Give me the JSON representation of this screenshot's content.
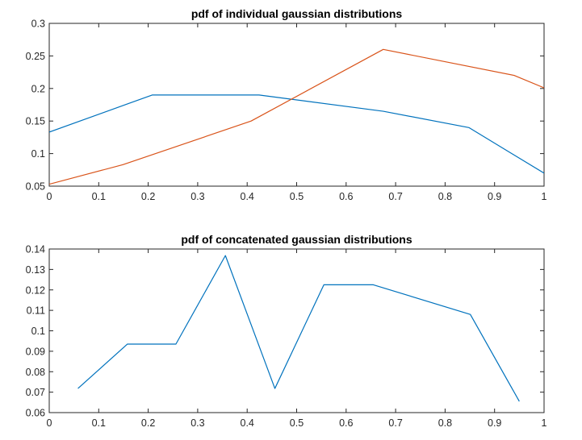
{
  "chart_data": [
    {
      "type": "line",
      "title": "pdf of individual gaussian distributions",
      "xlabel": "",
      "ylabel": "",
      "xlim": [
        0,
        1
      ],
      "ylim": [
        0.05,
        0.3
      ],
      "xticks": [
        "0",
        "0.1",
        "0.2",
        "0.3",
        "0.4",
        "0.5",
        "0.6",
        "0.7",
        "0.8",
        "0.9",
        "1"
      ],
      "xtick_values": [
        0,
        0.1,
        0.2,
        0.3,
        0.4,
        0.5,
        0.6,
        0.7,
        0.8,
        0.9,
        1
      ],
      "yticks": [
        "0.05",
        "0.1",
        "0.15",
        "0.2",
        "0.25",
        "0.3"
      ],
      "ytick_values": [
        0.05,
        0.1,
        0.15,
        0.2,
        0.25,
        0.3
      ],
      "grid": false,
      "series": [
        {
          "color": "#0072bd",
          "x": [
            0,
            0.208,
            0.424,
            0.675,
            0.848,
            1.0
          ],
          "y": [
            0.133,
            0.19,
            0.19,
            0.165,
            0.14,
            0.07
          ]
        },
        {
          "color": "#d95319",
          "x": [
            0,
            0.149,
            0.408,
            0.675,
            0.94,
            1.0
          ],
          "y": [
            0.053,
            0.083,
            0.15,
            0.26,
            0.22,
            0.201
          ]
        }
      ]
    },
    {
      "type": "line",
      "title": "pdf of concatenated gaussian distributions",
      "xlabel": "",
      "ylabel": "",
      "xlim": [
        0,
        1
      ],
      "ylim": [
        0.06,
        0.14
      ],
      "xticks": [
        "0",
        "0.1",
        "0.2",
        "0.3",
        "0.4",
        "0.5",
        "0.6",
        "0.7",
        "0.8",
        "0.9",
        "1"
      ],
      "xtick_values": [
        0,
        0.1,
        0.2,
        0.3,
        0.4,
        0.5,
        0.6,
        0.7,
        0.8,
        0.9,
        1
      ],
      "yticks": [
        "0.06",
        "0.07",
        "0.08",
        "0.09",
        "0.1",
        "0.11",
        "0.12",
        "0.13",
        "0.14"
      ],
      "ytick_values": [
        0.06,
        0.07,
        0.08,
        0.09,
        0.1,
        0.11,
        0.12,
        0.13,
        0.14
      ],
      "grid": false,
      "series": [
        {
          "color": "#0072bd",
          "x": [
            0.058,
            0.158,
            0.256,
            0.356,
            0.456,
            0.555,
            0.655,
            0.851,
            0.95
          ],
          "y": [
            0.0718,
            0.0935,
            0.0935,
            0.1368,
            0.0718,
            0.1225,
            0.1225,
            0.108,
            0.0655
          ]
        }
      ]
    }
  ]
}
